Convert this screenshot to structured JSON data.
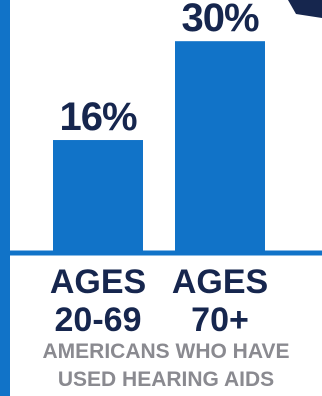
{
  "colors": {
    "bar": "#1173c8",
    "axis": "#1173c8",
    "value_text": "#16264e",
    "category_text": "#16264e",
    "caption_text": "#8a8a90",
    "border": "#1173c8",
    "accent": "#16264e"
  },
  "chart_data": {
    "type": "bar",
    "categories": [
      [
        "AGES",
        "20-69"
      ],
      [
        "AGES",
        "70+"
      ]
    ],
    "values": [
      16,
      30
    ],
    "value_labels": [
      "16%",
      "30%"
    ],
    "ylim": [
      0,
      33
    ],
    "title": "",
    "xlabel": "",
    "ylabel": "",
    "grid": false
  },
  "caption": {
    "line1": "AMERICANS WHO HAVE",
    "line2": "USED HEARING AIDS"
  }
}
